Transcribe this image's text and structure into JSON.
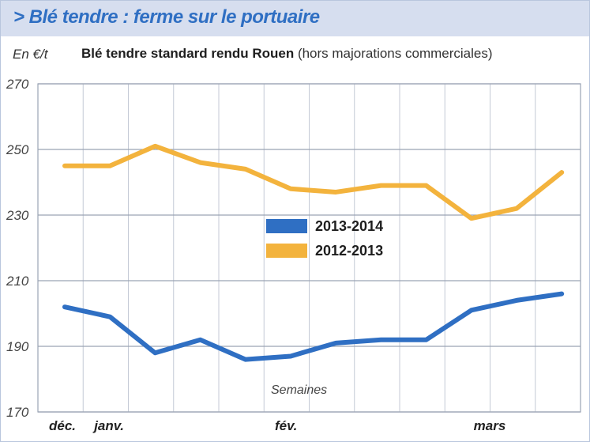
{
  "header": {
    "title": "> Blé tendre : ferme sur le portuaire",
    "unit": "En €/t",
    "subtitle": "Blé tendre standard rendu Rouen",
    "subtitle_note": "(hors majorations commerciales)"
  },
  "chart_data": {
    "type": "line",
    "title": "Blé tendre standard rendu Rouen",
    "ylabel": "En €/t",
    "xlabel": "Semaines",
    "ylim": [
      170,
      270
    ],
    "yticks": [
      170,
      190,
      210,
      230,
      250,
      270
    ],
    "month_labels": [
      {
        "label": "déc.",
        "week": 0
      },
      {
        "label": "janv.",
        "week": 1
      },
      {
        "label": "fév.",
        "week": 5
      },
      {
        "label": "mars",
        "week": 9.4
      }
    ],
    "x": [
      0,
      1,
      2,
      3,
      4,
      5,
      6,
      7,
      8,
      9,
      10,
      11
    ],
    "series": [
      {
        "name": "2013-2014",
        "color": "#2f6fc3",
        "values": [
          202,
          199,
          188,
          192,
          186,
          187,
          191,
          192,
          192,
          201,
          204,
          206
        ]
      },
      {
        "name": "2012-2013",
        "color": "#f3b33d",
        "values": [
          245,
          245,
          251,
          246,
          244,
          238,
          237,
          239,
          239,
          229,
          232,
          243
        ]
      }
    ],
    "grid": true,
    "legend": "center"
  }
}
